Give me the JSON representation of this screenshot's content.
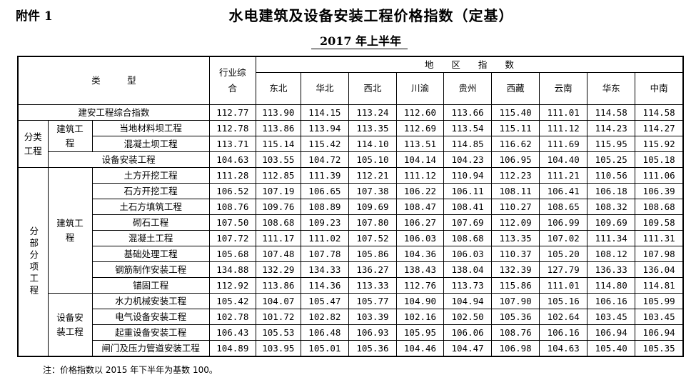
{
  "attachment": "附件 1",
  "title": "水电建筑及设备安装工程价格指数（定基）",
  "subtitle": "2017 年上半年",
  "header": {
    "type_label": "类　　　型",
    "industry_label": "行业综合",
    "region_label": "地　　区　　指　　数",
    "regions": [
      "东北",
      "华北",
      "西北",
      "川渝",
      "贵州",
      "西藏",
      "云南",
      "华东",
      "中南"
    ]
  },
  "groups": {
    "classified": "分类工程",
    "subitem": "分部分项工程",
    "civil": "建筑工程",
    "equipment": "设备安装工程"
  },
  "rows": [
    {
      "name": "建安工程综合指数",
      "values": [
        "112.77",
        "113.90",
        "114.15",
        "113.24",
        "112.60",
        "113.66",
        "115.40",
        "111.01",
        "114.58",
        "114.58"
      ]
    },
    {
      "name": "当地材料坝工程",
      "values": [
        "112.78",
        "113.86",
        "113.94",
        "113.35",
        "112.69",
        "113.54",
        "115.11",
        "111.12",
        "114.23",
        "114.27"
      ]
    },
    {
      "name": "混凝土坝工程",
      "values": [
        "113.71",
        "115.14",
        "115.42",
        "114.10",
        "113.51",
        "114.85",
        "116.62",
        "111.69",
        "115.95",
        "115.92"
      ]
    },
    {
      "name": "设备安装工程",
      "values": [
        "104.63",
        "103.55",
        "104.72",
        "105.10",
        "104.14",
        "104.23",
        "106.95",
        "104.40",
        "105.25",
        "105.18"
      ]
    },
    {
      "name": "土方开挖工程",
      "values": [
        "111.28",
        "112.85",
        "111.39",
        "112.21",
        "111.12",
        "110.94",
        "112.23",
        "111.21",
        "110.56",
        "111.06"
      ]
    },
    {
      "name": "石方开挖工程",
      "values": [
        "106.52",
        "107.19",
        "106.65",
        "107.38",
        "106.22",
        "106.11",
        "108.11",
        "106.41",
        "106.18",
        "106.39"
      ]
    },
    {
      "name": "土石方填筑工程",
      "values": [
        "108.76",
        "109.76",
        "108.89",
        "109.69",
        "108.47",
        "108.41",
        "110.27",
        "108.65",
        "108.32",
        "108.68"
      ]
    },
    {
      "name": "砌石工程",
      "values": [
        "107.50",
        "108.68",
        "109.23",
        "107.80",
        "106.27",
        "107.69",
        "112.09",
        "106.99",
        "109.69",
        "109.58"
      ]
    },
    {
      "name": "混凝土工程",
      "values": [
        "107.72",
        "111.17",
        "111.02",
        "107.52",
        "106.03",
        "108.68",
        "113.35",
        "107.02",
        "111.34",
        "111.31"
      ]
    },
    {
      "name": "基础处理工程",
      "values": [
        "105.68",
        "107.48",
        "107.78",
        "105.86",
        "104.36",
        "106.03",
        "110.37",
        "105.20",
        "108.12",
        "107.98"
      ]
    },
    {
      "name": "钢筋制作安装工程",
      "values": [
        "134.88",
        "132.29",
        "134.33",
        "136.27",
        "138.43",
        "138.04",
        "132.39",
        "127.79",
        "136.33",
        "136.04"
      ]
    },
    {
      "name": "锚固工程",
      "values": [
        "112.92",
        "113.86",
        "114.36",
        "113.33",
        "112.76",
        "113.73",
        "115.86",
        "111.01",
        "114.80",
        "114.81"
      ]
    },
    {
      "name": "水力机械安装工程",
      "values": [
        "105.42",
        "104.07",
        "105.47",
        "105.77",
        "104.90",
        "104.94",
        "107.90",
        "105.16",
        "106.16",
        "105.99"
      ]
    },
    {
      "name": "电气设备安装工程",
      "values": [
        "102.78",
        "101.72",
        "102.82",
        "103.39",
        "102.16",
        "102.50",
        "105.36",
        "102.64",
        "103.45",
        "103.45"
      ]
    },
    {
      "name": "起重设备安装工程",
      "values": [
        "106.43",
        "105.53",
        "106.48",
        "106.93",
        "105.95",
        "106.06",
        "108.76",
        "106.16",
        "106.94",
        "106.94"
      ]
    },
    {
      "name": "闸门及压力管道安装工程",
      "values": [
        "104.89",
        "103.95",
        "105.01",
        "105.36",
        "104.46",
        "104.47",
        "106.98",
        "104.63",
        "105.40",
        "105.35"
      ]
    }
  ],
  "note": "注：价格指数以 2015 年下半年为基数 100。"
}
